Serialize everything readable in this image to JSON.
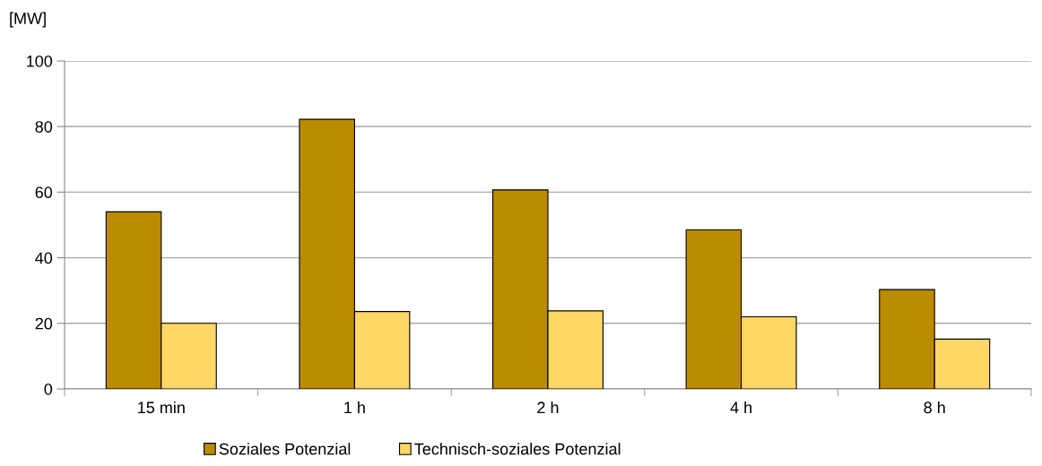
{
  "chart_data": {
    "type": "bar",
    "ylabel": "[MW]",
    "categories": [
      "15 min",
      "1 h",
      "2 h",
      "4 h",
      "8 h"
    ],
    "series": [
      {
        "name": "Soziales Potenzial",
        "color": "#bb8b00",
        "values": [
          54.0,
          82.2,
          60.7,
          48.5,
          30.3
        ]
      },
      {
        "name": "Technisch-soziales Potenzial",
        "color": "#ffd766",
        "values": [
          20.0,
          23.6,
          23.8,
          22.0,
          15.2
        ]
      }
    ],
    "ylim": [
      0,
      100
    ],
    "yticks": [
      0,
      20,
      40,
      60,
      80,
      100
    ],
    "grid": "y",
    "legend": "bottom"
  }
}
